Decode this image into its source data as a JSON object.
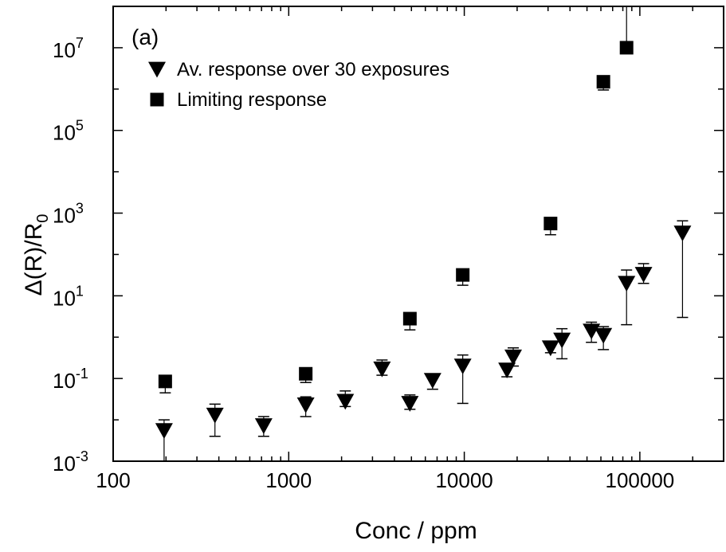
{
  "chart_data": {
    "type": "scatter",
    "panel_label": "(a)",
    "xlabel": "Conc / ppm",
    "ylabel": {
      "base": "Δ(R)/R",
      "subscript": "0"
    },
    "x_scale": "log",
    "y_scale": "log",
    "xlim": [
      100,
      300000
    ],
    "ylim": [
      0.001,
      100000000
    ],
    "x_tick_labels": [
      "100",
      "1000",
      "10000",
      "100000"
    ],
    "y_tick_labels": [
      {
        "base": "10",
        "exp": "-3"
      },
      {
        "base": "10",
        "exp": "-1"
      },
      {
        "base": "10",
        "exp": "1"
      },
      {
        "base": "10",
        "exp": "3"
      },
      {
        "base": "10",
        "exp": "5"
      },
      {
        "base": "10",
        "exp": "7"
      }
    ],
    "legend_position": "top-left",
    "series": [
      {
        "name": "Av. response over 30 exposures",
        "marker": "triangle-down",
        "color": "#000000",
        "points": [
          {
            "x": 195,
            "y": 0.0055,
            "lo": 0.001,
            "hi": 0.01
          },
          {
            "x": 380,
            "y": 0.013,
            "lo": 0.004,
            "hi": 0.024
          },
          {
            "x": 720,
            "y": 0.0072,
            "lo": 0.004,
            "hi": 0.012
          },
          {
            "x": 1250,
            "y": 0.023,
            "lo": 0.012,
            "hi": 0.036
          },
          {
            "x": 2100,
            "y": 0.028,
            "lo": 0.021,
            "hi": 0.05
          },
          {
            "x": 3400,
            "y": 0.17,
            "lo": 0.12,
            "hi": 0.28
          },
          {
            "x": 4900,
            "y": 0.025,
            "lo": 0.018,
            "hi": 0.04
          },
          {
            "x": 6600,
            "y": 0.09,
            "lo": 0.055,
            "hi": 0.13
          },
          {
            "x": 9800,
            "y": 0.2,
            "lo": 0.025,
            "hi": 0.37
          },
          {
            "x": 17500,
            "y": 0.16,
            "lo": 0.11,
            "hi": 0.22
          },
          {
            "x": 19000,
            "y": 0.33,
            "lo": 0.2,
            "hi": 0.55
          },
          {
            "x": 31000,
            "y": 0.55,
            "lo": 0.42,
            "hi": 0.8
          },
          {
            "x": 36000,
            "y": 0.85,
            "lo": 0.3,
            "hi": 1.6
          },
          {
            "x": 53000,
            "y": 1.4,
            "lo": 0.75,
            "hi": 2.3
          },
          {
            "x": 62000,
            "y": 1.1,
            "lo": 0.5,
            "hi": 1.8
          },
          {
            "x": 84000,
            "y": 20,
            "lo": 2,
            "hi": 42
          },
          {
            "x": 105000,
            "y": 33,
            "lo": 20,
            "hi": 60
          },
          {
            "x": 175000,
            "y": 330,
            "lo": 3,
            "hi": 650
          }
        ]
      },
      {
        "name": "Limiting response",
        "marker": "square",
        "color": "#000000",
        "points": [
          {
            "x": 198,
            "y": 0.085,
            "lo": 0.045,
            "hi": null
          },
          {
            "x": 1250,
            "y": 0.13,
            "lo": 0.08,
            "hi": null
          },
          {
            "x": 4900,
            "y": 2.8,
            "lo": 1.5,
            "hi": null
          },
          {
            "x": 9800,
            "y": 32,
            "lo": 18,
            "hi": null
          },
          {
            "x": 31000,
            "y": 560,
            "lo": 300,
            "hi": null
          },
          {
            "x": 62000,
            "y": 1500000,
            "lo": 950000,
            "hi": null
          },
          {
            "x": 84000,
            "y": 10000000,
            "lo": null,
            "hi": 100000000
          }
        ]
      }
    ]
  }
}
